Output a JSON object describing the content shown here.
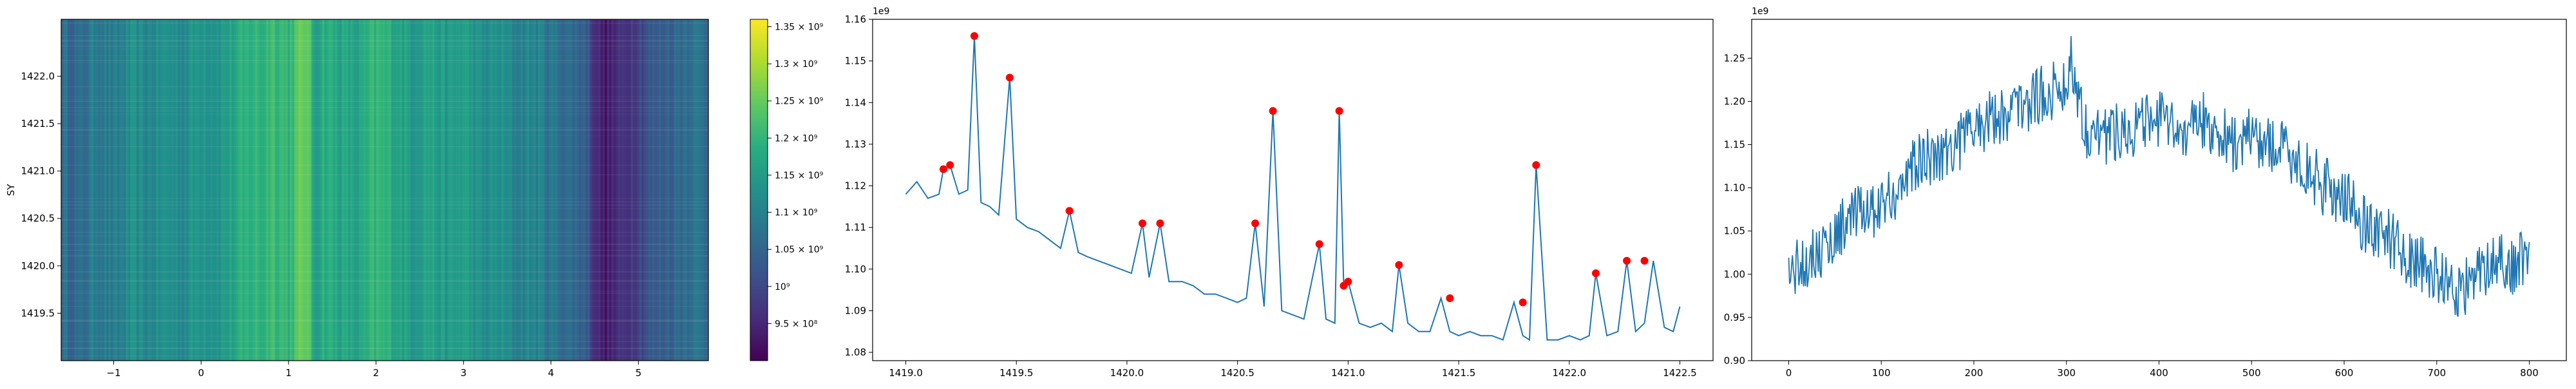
{
  "chart_data": [
    {
      "type": "heatmap",
      "ylabel": "SY",
      "xlabel": "",
      "xlim": [
        -1.6,
        5.8
      ],
      "ylim": [
        1419.0,
        1422.6
      ],
      "x_ticks": [
        -1,
        0,
        1,
        2,
        3,
        4,
        5
      ],
      "x_tick_labels": [
        "−1",
        "0",
        "1",
        "2",
        "3",
        "4",
        "5"
      ],
      "y_ticks": [
        1419.5,
        1420.0,
        1420.5,
        1421.0,
        1421.5,
        1422.0
      ],
      "y_tick_labels": [
        "1419.5",
        "1420.0",
        "1420.5",
        "1421.0",
        "1421.5",
        "1422.0"
      ],
      "colormap": "viridis",
      "color_range": [
        900000000.0,
        1360000000.0
      ],
      "colorbar": {
        "tick_values": [
          950000000.0,
          1000000000.0,
          1050000000.0,
          1100000000.0,
          1150000000.0,
          1200000000.0,
          1250000000.0,
          1300000000.0,
          1350000000.0
        ],
        "tick_labels": [
          "9.5 × 10⁸",
          "10⁹",
          "1.05 × 10⁹",
          "1.1 × 10⁹",
          "1.15 × 10⁹",
          "1.2 × 10⁹",
          "1.25 × 10⁹",
          "1.3 × 10⁹",
          "1.35 × 10⁹"
        ]
      },
      "column_profile": {
        "x": [
          -1.6,
          -1.4,
          -1.2,
          -1.0,
          -0.8,
          -0.6,
          -0.4,
          -0.2,
          0.0,
          0.2,
          0.4,
          0.6,
          0.7,
          0.8,
          1.0,
          1.1,
          1.2,
          1.3,
          1.4,
          1.6,
          1.8,
          2.0,
          2.2,
          2.4,
          2.6,
          2.8,
          3.0,
          3.2,
          3.4,
          3.6,
          3.8,
          4.0,
          4.2,
          4.4,
          4.5,
          4.6,
          4.8,
          5.0,
          5.2,
          5.4,
          5.6,
          5.8
        ],
        "values": [
          1070000000.0,
          1050000000.0,
          1100000000.0,
          1080000000.0,
          1120000000.0,
          1110000000.0,
          1130000000.0,
          1120000000.0,
          1150000000.0,
          1140000000.0,
          1170000000.0,
          1200000000.0,
          1190000000.0,
          1220000000.0,
          1200000000.0,
          1230000000.0,
          1260000000.0,
          1160000000.0,
          1190000000.0,
          1170000000.0,
          1160000000.0,
          1200000000.0,
          1180000000.0,
          1150000000.0,
          1170000000.0,
          1140000000.0,
          1160000000.0,
          1120000000.0,
          1130000000.0,
          1100000000.0,
          1110000000.0,
          1080000000.0,
          1060000000.0,
          1040000000.0,
          970000000.0,
          930000000.0,
          960000000.0,
          1000000000.0,
          1030000000.0,
          1050000000.0,
          1080000000.0,
          1060000000.0
        ]
      }
    },
    {
      "type": "line",
      "xlim": [
        1418.85,
        1422.65
      ],
      "ylim": [
        1078000000.0,
        1160000000.0
      ],
      "x_ticks": [
        1419.0,
        1419.5,
        1420.0,
        1420.5,
        1421.0,
        1421.5,
        1422.0,
        1422.5
      ],
      "x_tick_labels": [
        "1419.0",
        "1419.5",
        "1420.0",
        "1420.5",
        "1421.0",
        "1421.5",
        "1422.0",
        "1422.5"
      ],
      "y_ticks": [
        1080000000.0,
        1090000000.0,
        1100000000.0,
        1110000000.0,
        1120000000.0,
        1130000000.0,
        1140000000.0,
        1150000000.0,
        1160000000.0
      ],
      "y_tick_labels": [
        "1.08",
        "1.09",
        "1.10",
        "1.11",
        "1.12",
        "1.13",
        "1.14",
        "1.15",
        "1.16"
      ],
      "offset_label": "1e9",
      "line_color": "#1f77b4",
      "peak_color": "#ff0000",
      "x": [
        1419.0,
        1419.05,
        1419.1,
        1419.15,
        1419.17,
        1419.2,
        1419.24,
        1419.28,
        1419.31,
        1419.34,
        1419.38,
        1419.42,
        1419.47,
        1419.5,
        1419.55,
        1419.6,
        1419.65,
        1419.7,
        1419.74,
        1419.78,
        1419.82,
        1419.87,
        1419.92,
        1419.97,
        1420.02,
        1420.07,
        1420.1,
        1420.15,
        1420.19,
        1420.25,
        1420.3,
        1420.35,
        1420.4,
        1420.45,
        1420.5,
        1420.54,
        1420.58,
        1420.62,
        1420.66,
        1420.7,
        1420.75,
        1420.8,
        1420.87,
        1420.9,
        1420.94,
        1420.96,
        1420.98,
        1421.0,
        1421.05,
        1421.1,
        1421.15,
        1421.2,
        1421.23,
        1421.27,
        1421.32,
        1421.37,
        1421.42,
        1421.46,
        1421.5,
        1421.55,
        1421.6,
        1421.65,
        1421.7,
        1421.75,
        1421.79,
        1421.82,
        1421.85,
        1421.9,
        1421.95,
        1422.0,
        1422.05,
        1422.09,
        1422.12,
        1422.17,
        1422.22,
        1422.26,
        1422.3,
        1422.34,
        1422.38,
        1422.43,
        1422.47,
        1422.5
      ],
      "values": [
        1118000000.0,
        1121000000.0,
        1117000000.0,
        1118000000.0,
        1124000000.0,
        1125000000.0,
        1118000000.0,
        1119000000.0,
        1156000000.0,
        1116000000.0,
        1115000000.0,
        1113000000.0,
        1146000000.0,
        1112000000.0,
        1110000000.0,
        1109000000.0,
        1107000000.0,
        1105000000.0,
        1114000000.0,
        1104000000.0,
        1103000000.0,
        1102000000.0,
        1101000000.0,
        1100000000.0,
        1099000000.0,
        1111000000.0,
        1098000000.0,
        1111000000.0,
        1097000000.0,
        1097000000.0,
        1096000000.0,
        1094000000.0,
        1094000000.0,
        1093000000.0,
        1092000000.0,
        1093000000.0,
        1111000000.0,
        1091000000.0,
        1138000000.0,
        1090000000.0,
        1089000000.0,
        1088000000.0,
        1106000000.0,
        1088000000.0,
        1087000000.0,
        1138000000.0,
        1096000000.0,
        1097000000.0,
        1087000000.0,
        1086000000.0,
        1087000000.0,
        1085000000.0,
        1101000000.0,
        1087000000.0,
        1085000000.0,
        1085000000.0,
        1093000000.0,
        1085000000.0,
        1084000000.0,
        1085000000.0,
        1084000000.0,
        1084000000.0,
        1083000000.0,
        1092000000.0,
        1084000000.0,
        1083000000.0,
        1125000000.0,
        1083000000.0,
        1083000000.0,
        1084000000.0,
        1083000000.0,
        1084000000.0,
        1099000000.0,
        1084000000.0,
        1085000000.0,
        1102000000.0,
        1085000000.0,
        1087000000.0,
        1102000000.0,
        1086000000.0,
        1085000000.0,
        1091000000.0
      ],
      "peaks": {
        "x": [
          1419.17,
          1419.2,
          1419.31,
          1419.47,
          1419.74,
          1420.07,
          1420.15,
          1420.58,
          1420.66,
          1420.87,
          1420.96,
          1420.98,
          1421.0,
          1421.23,
          1421.46,
          1421.79,
          1421.85,
          1422.12,
          1422.26,
          1422.34
        ],
        "y": [
          1124000000.0,
          1125000000.0,
          1156000000.0,
          1146000000.0,
          1114000000.0,
          1111000000.0,
          1111000000.0,
          1111000000.0,
          1138000000.0,
          1106000000.0,
          1138000000.0,
          1096000000.0,
          1097000000.0,
          1101000000.0,
          1093000000.0,
          1092000000.0,
          1125000000.0,
          1099000000.0,
          1102000000.0,
          1102000000.0
        ]
      }
    },
    {
      "type": "line",
      "xlim": [
        -40,
        840
      ],
      "ylim": [
        900000000.0,
        1295000000.0
      ],
      "x_ticks": [
        0,
        100,
        200,
        300,
        400,
        500,
        600,
        700,
        800
      ],
      "x_tick_labels": [
        "0",
        "100",
        "200",
        "300",
        "400",
        "500",
        "600",
        "700",
        "800"
      ],
      "y_ticks": [
        900000000.0,
        950000000.0,
        1000000000.0,
        1050000000.0,
        1100000000.0,
        1150000000.0,
        1200000000.0,
        1250000000.0
      ],
      "y_tick_labels": [
        "0.90",
        "0.95",
        "1.00",
        "1.05",
        "1.10",
        "1.15",
        "1.20",
        "1.25"
      ],
      "offset_label": "1e9",
      "line_color": "#1f77b4",
      "envelope": {
        "x": [
          0,
          20,
          40,
          60,
          80,
          100,
          120,
          140,
          160,
          180,
          200,
          220,
          240,
          260,
          280,
          300,
          305,
          320,
          340,
          360,
          380,
          400,
          420,
          440,
          460,
          480,
          500,
          520,
          540,
          560,
          580,
          600,
          620,
          640,
          660,
          680,
          700,
          720,
          740,
          760,
          780,
          800
        ],
        "values": [
          1000000000.0,
          1020000000.0,
          1030000000.0,
          1060000000.0,
          1070000000.0,
          1080000000.0,
          1100000000.0,
          1130000000.0,
          1140000000.0,
          1150000000.0,
          1170000000.0,
          1180000000.0,
          1190000000.0,
          1200000000.0,
          1210000000.0,
          1220000000.0,
          1250000000.0,
          1170000000.0,
          1160000000.0,
          1170000000.0,
          1170000000.0,
          1180000000.0,
          1160000000.0,
          1180000000.0,
          1170000000.0,
          1150000000.0,
          1160000000.0,
          1150000000.0,
          1140000000.0,
          1120000000.0,
          1100000000.0,
          1090000000.0,
          1060000000.0,
          1050000000.0,
          1030000000.0,
          1010000000.0,
          1000000000.0,
          980000000.0,
          990000000.0,
          1020000000.0,
          1010000000.0,
          1020000000.0
        ]
      },
      "noise_amplitude": 35000000.0
    }
  ]
}
